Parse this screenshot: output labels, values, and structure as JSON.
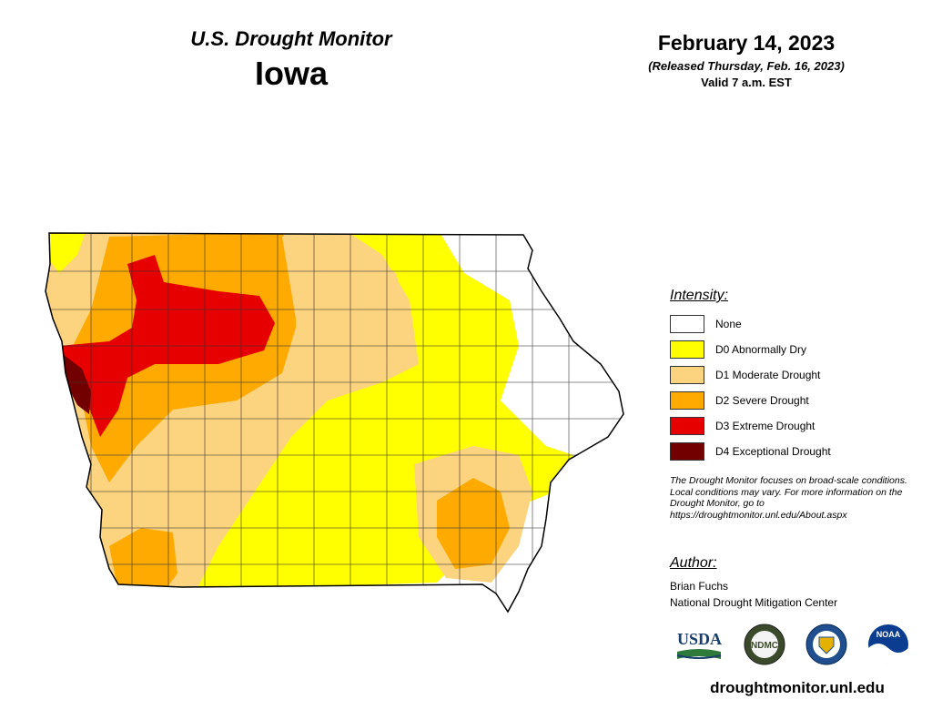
{
  "header": {
    "product": "U.S. Drought Monitor",
    "state": "Iowa",
    "date": "February 14, 2023",
    "released": "(Released Thursday, Feb. 16, 2023)",
    "valid": "Valid 7 a.m. EST"
  },
  "legend": {
    "title": "Intensity:",
    "items": [
      {
        "label": "None",
        "color": "#ffffff"
      },
      {
        "label": "D0 Abnormally Dry",
        "color": "#ffff00"
      },
      {
        "label": "D1 Moderate Drought",
        "color": "#fcd37f"
      },
      {
        "label": "D2 Severe Drought",
        "color": "#ffaa00"
      },
      {
        "label": "D3 Extreme Drought",
        "color": "#e60000"
      },
      {
        "label": "D4 Exceptional Drought",
        "color": "#730000"
      }
    ]
  },
  "note": "The Drought Monitor focuses on broad-scale conditions. Local conditions may vary. For more information on the Drought Monitor, go to https://droughtmonitor.unl.edu/About.aspx",
  "author": {
    "title": "Author:",
    "name": "Brian Fuchs",
    "org": "National Drought Mitigation Center"
  },
  "logos": [
    {
      "name": "usda-logo",
      "text": "USDA"
    },
    {
      "name": "ndmc-logo",
      "text": "NDMC"
    },
    {
      "name": "doc-seal",
      "text": ""
    },
    {
      "name": "noaa-logo",
      "text": "NOAA"
    }
  ],
  "website": "droughtmonitor.unl.edu"
}
